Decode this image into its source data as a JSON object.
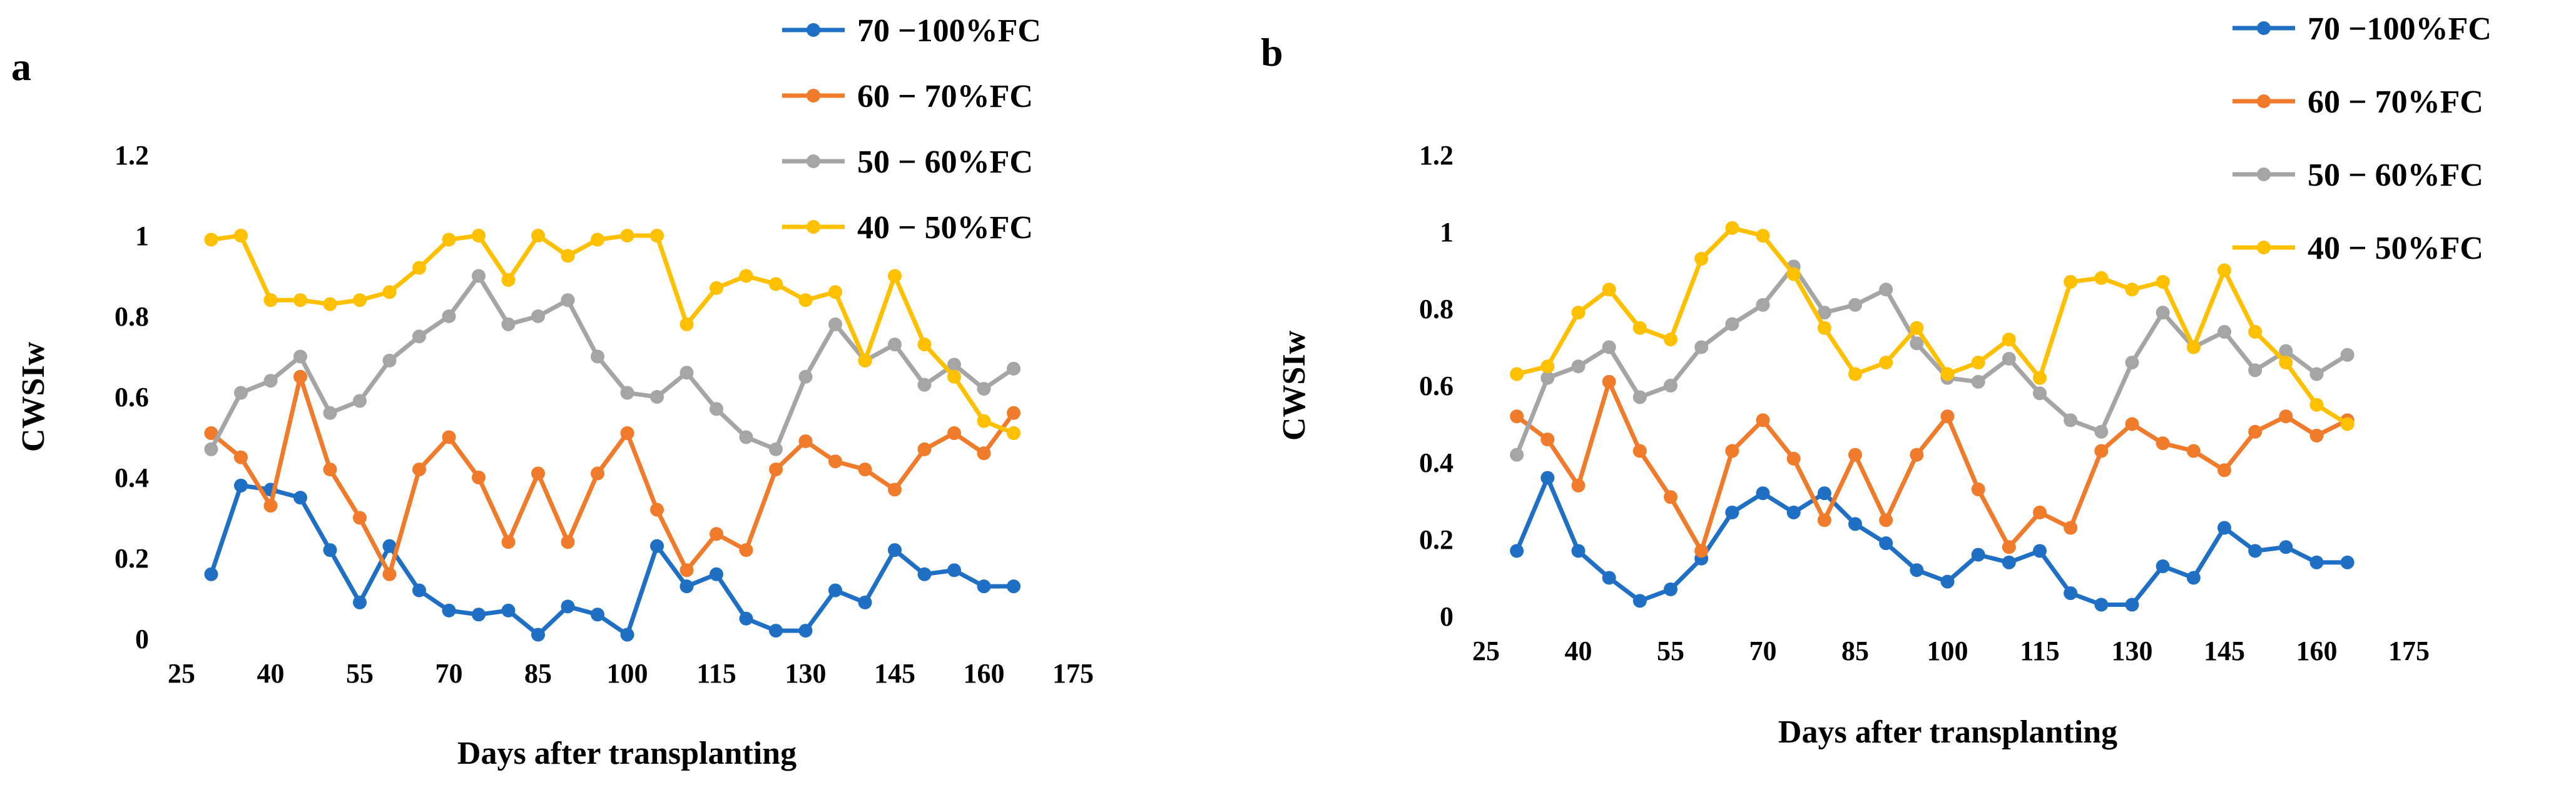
{
  "chart_data": [
    {
      "panel": "a",
      "type": "line",
      "ylabel": "CWSIw",
      "xlabel": "Days after transplanting",
      "xlim": [
        25,
        175
      ],
      "xticks": [
        "25",
        "40",
        "55",
        "70",
        "85",
        "100",
        "115",
        "130",
        "145",
        "160",
        "175"
      ],
      "ylim": [
        0,
        1.2
      ],
      "yticks": [
        "0",
        "0.2",
        "0.4",
        "0.6",
        "0.8",
        "1",
        "1.2"
      ],
      "grid": false,
      "legend": "top-right",
      "x": [
        30,
        35,
        40,
        45,
        50,
        55,
        60,
        65,
        70,
        75,
        80,
        85,
        90,
        95,
        100,
        105,
        110,
        115,
        120,
        125,
        130,
        135,
        140,
        145,
        150,
        155,
        160,
        165
      ],
      "series": [
        {
          "name": "70 −100%FC",
          "color": "#1F6FC5",
          "values": [
            0.16,
            0.38,
            0.37,
            0.35,
            0.22,
            0.09,
            0.23,
            0.12,
            0.07,
            0.06,
            0.07,
            0.01,
            0.08,
            0.06,
            0.01,
            0.23,
            0.13,
            0.16,
            0.05,
            0.02,
            0.02,
            0.12,
            0.09,
            0.22,
            0.16,
            0.17,
            0.13,
            0.13
          ]
        },
        {
          "name": "60 − 70%FC",
          "color": "#F07B2B",
          "values": [
            0.51,
            0.45,
            0.33,
            0.65,
            0.42,
            0.3,
            0.16,
            0.42,
            0.5,
            0.4,
            0.24,
            0.41,
            0.24,
            0.41,
            0.51,
            0.32,
            0.17,
            0.26,
            0.22,
            0.42,
            0.49,
            0.44,
            0.42,
            0.37,
            0.47,
            0.51,
            0.46,
            0.56
          ]
        },
        {
          "name": "50 − 60%FC",
          "color": "#A5A5A5",
          "values": [
            0.47,
            0.61,
            0.64,
            0.7,
            0.56,
            0.59,
            0.69,
            0.75,
            0.8,
            0.9,
            0.78,
            0.8,
            0.84,
            0.7,
            0.61,
            0.6,
            0.66,
            0.57,
            0.5,
            0.47,
            0.65,
            0.78,
            0.69,
            0.73,
            0.63,
            0.68,
            0.62,
            0.67
          ]
        },
        {
          "name": "40 − 50%FC",
          "color": "#FFC000",
          "values": [
            0.99,
            1.0,
            0.84,
            0.84,
            0.83,
            0.84,
            0.86,
            0.92,
            0.99,
            1.0,
            0.89,
            1.0,
            0.95,
            0.99,
            1.0,
            1.0,
            0.78,
            0.87,
            0.9,
            0.88,
            0.84,
            0.86,
            0.69,
            0.9,
            0.73,
            0.65,
            0.54,
            0.51
          ]
        }
      ]
    },
    {
      "panel": "b",
      "type": "line",
      "ylabel": "CWSIw",
      "xlabel": "Days after transplanting",
      "xlim": [
        25,
        175
      ],
      "xticks": [
        "25",
        "40",
        "55",
        "70",
        "85",
        "100",
        "115",
        "130",
        "145",
        "160",
        "175"
      ],
      "ylim": [
        0,
        1.2
      ],
      "yticks": [
        "0",
        "0.2",
        "0.4",
        "0.6",
        "0.8",
        "1",
        "1.2"
      ],
      "grid": false,
      "legend": "top-right",
      "x": [
        30,
        35,
        40,
        45,
        50,
        55,
        60,
        65,
        70,
        75,
        80,
        85,
        90,
        95,
        100,
        105,
        110,
        115,
        120,
        125,
        130,
        135,
        140,
        145,
        150,
        155,
        160,
        165
      ],
      "series": [
        {
          "name": "70 −100%FC",
          "color": "#1F6FC5",
          "values": [
            0.17,
            0.36,
            0.17,
            0.1,
            0.04,
            0.07,
            0.15,
            0.27,
            0.32,
            0.27,
            0.32,
            0.24,
            0.19,
            0.12,
            0.09,
            0.16,
            0.14,
            0.17,
            0.06,
            0.03,
            0.03,
            0.13,
            0.1,
            0.23,
            0.17,
            0.18,
            0.14,
            0.14
          ]
        },
        {
          "name": "60 − 70%FC",
          "color": "#F07B2B",
          "values": [
            0.52,
            0.46,
            0.34,
            0.61,
            0.43,
            0.31,
            0.17,
            0.43,
            0.51,
            0.41,
            0.25,
            0.42,
            0.25,
            0.42,
            0.52,
            0.33,
            0.18,
            0.27,
            0.23,
            0.43,
            0.5,
            0.45,
            0.43,
            0.38,
            0.48,
            0.52,
            0.47,
            0.51
          ]
        },
        {
          "name": "50 − 60%FC",
          "color": "#A5A5A5",
          "values": [
            0.42,
            0.62,
            0.65,
            0.7,
            0.57,
            0.6,
            0.7,
            0.76,
            0.81,
            0.91,
            0.79,
            0.81,
            0.85,
            0.71,
            0.62,
            0.61,
            0.67,
            0.58,
            0.51,
            0.48,
            0.66,
            0.79,
            0.7,
            0.74,
            0.64,
            0.69,
            0.63,
            0.68
          ]
        },
        {
          "name": "40 − 50%FC",
          "color": "#FFC000",
          "values": [
            0.63,
            0.65,
            0.79,
            0.85,
            0.75,
            0.72,
            0.93,
            1.01,
            0.99,
            0.89,
            0.75,
            0.63,
            0.66,
            0.75,
            0.63,
            0.66,
            0.72,
            0.62,
            0.87,
            0.88,
            0.85,
            0.87,
            0.7,
            0.9,
            0.74,
            0.66,
            0.55,
            0.5
          ]
        }
      ]
    }
  ]
}
